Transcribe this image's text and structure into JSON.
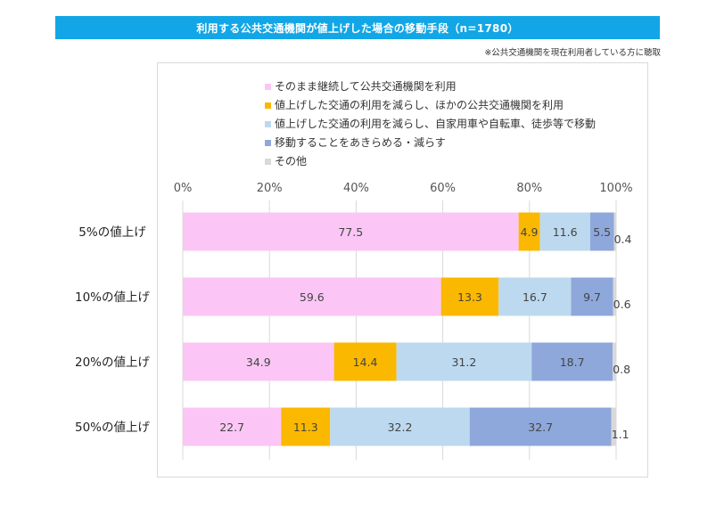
{
  "header": {
    "title": "利用する公共交通機関が値上げした場合の移動手段（n=1780）",
    "note": "※公共交通機関を現在利用者している方に聴取"
  },
  "legend": [
    {
      "label": "そのまま継続して公共交通機関を利用",
      "color": "#fbc6f6"
    },
    {
      "label": "値上げした交通の利用を減らし、ほかの公共交通機関を利用",
      "color": "#fbb800"
    },
    {
      "label": "値上げした交通の利用を減らし、自家用車や自転車、徒歩等で移動",
      "color": "#bcd9ef"
    },
    {
      "label": "移動することをあきらめる・減らす",
      "color": "#8ea8db"
    },
    {
      "label": "その他",
      "color": "#d9d9d9"
    }
  ],
  "chart_data": {
    "type": "bar",
    "orientation": "horizontal-stacked-100",
    "x_ticks": [
      "0%",
      "20%",
      "40%",
      "60%",
      "80%",
      "100%"
    ],
    "xlim": [
      0,
      100
    ],
    "categories": [
      "5%の値上げ",
      "10%の値上げ",
      "20%の値上げ",
      "50%の値上げ"
    ],
    "series": [
      {
        "name": "そのまま継続して公共交通機関を利用",
        "color": "#fbc6f6",
        "values": [
          77.5,
          59.6,
          34.9,
          22.7
        ]
      },
      {
        "name": "値上げした交通の利用を減らし、ほかの公共交通機関を利用",
        "color": "#fbb800",
        "values": [
          4.9,
          13.3,
          14.4,
          11.3
        ]
      },
      {
        "name": "値上げした交通の利用を減らし、自家用車や自転車、徒歩等で移動",
        "color": "#bcd9ef",
        "values": [
          11.6,
          16.7,
          31.2,
          32.2
        ]
      },
      {
        "name": "移動することをあきらめる・減らす",
        "color": "#8ea8db",
        "values": [
          5.5,
          9.7,
          18.7,
          32.7
        ]
      },
      {
        "name": "その他",
        "color": "#d9d9d9",
        "values": [
          0.4,
          0.6,
          0.8,
          1.1
        ]
      }
    ],
    "data_labels": [
      [
        "77.5",
        "4.9",
        "11.6",
        "5.5",
        "0.4"
      ],
      [
        "59.6",
        "13.3",
        "16.7",
        "9.7",
        "0.6"
      ],
      [
        "34.9",
        "14.4",
        "31.2",
        "18.7",
        "0.8"
      ],
      [
        "22.7",
        "11.3",
        "32.2",
        "32.7",
        "1.1"
      ]
    ],
    "grid": true,
    "legend_position": "top"
  }
}
